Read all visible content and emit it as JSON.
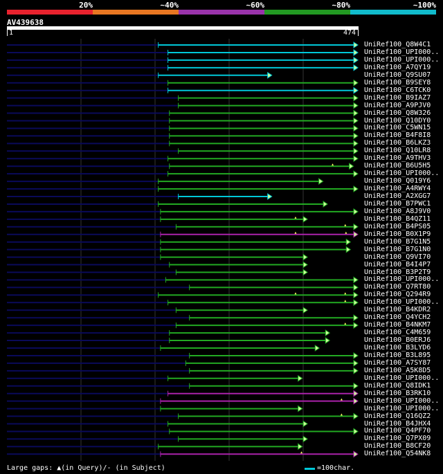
{
  "legend": {
    "colors": [
      "#e8222e",
      "#e87722",
      "#9933aa",
      "#229922",
      "#11bbcc"
    ],
    "labels": [
      "20%",
      "~40%",
      "~60%",
      "~80%",
      "~100%"
    ]
  },
  "query": {
    "name": "AV439638",
    "start": "1",
    "end": "474",
    "length": 474
  },
  "hits": [
    {
      "name": "UniRef100_Q8W4C1",
      "start": 205,
      "end": 474,
      "color": "cyan",
      "gaps": []
    },
    {
      "name": "UniRef100_UPI000..",
      "start": 218,
      "end": 474,
      "color": "cyan",
      "gaps": []
    },
    {
      "name": "UniRef100_UPI000..",
      "start": 218,
      "end": 474,
      "color": "cyan",
      "gaps": []
    },
    {
      "name": "UniRef100_A7QY19",
      "start": 218,
      "end": 474,
      "color": "cyan",
      "gaps": []
    },
    {
      "name": "UniRef100_Q9SU07",
      "start": 205,
      "end": 358,
      "color": "cyan",
      "gaps": []
    },
    {
      "name": "UniRef100_B9SEY8",
      "start": 218,
      "end": 474,
      "color": "green",
      "gaps": []
    },
    {
      "name": "UniRef100_C6TCK0",
      "start": 218,
      "end": 474,
      "color": "cyan",
      "gaps": []
    },
    {
      "name": "UniRef100_B9IAZ7",
      "start": 232,
      "end": 474,
      "color": "green",
      "gaps": []
    },
    {
      "name": "UniRef100_A9PJV0",
      "start": 232,
      "end": 474,
      "color": "green",
      "gaps": []
    },
    {
      "name": "UniRef100_Q8W326",
      "start": 220,
      "end": 474,
      "color": "green",
      "gaps": []
    },
    {
      "name": "UniRef100_Q10DY0",
      "start": 220,
      "end": 474,
      "color": "green",
      "gaps": []
    },
    {
      "name": "UniRef100_C5WN15",
      "start": 220,
      "end": 474,
      "color": "green",
      "gaps": []
    },
    {
      "name": "UniRef100_B4F8I8",
      "start": 220,
      "end": 474,
      "color": "green",
      "gaps": []
    },
    {
      "name": "UniRef100_B6LKZ3",
      "start": 220,
      "end": 474,
      "color": "green",
      "gaps": []
    },
    {
      "name": "UniRef100_Q10LR8",
      "start": 232,
      "end": 474,
      "color": "green",
      "gaps": []
    },
    {
      "name": "UniRef100_A9THV3",
      "start": 218,
      "end": 474,
      "color": "green",
      "gaps": []
    },
    {
      "name": "UniRef100_B6U5H5",
      "start": 220,
      "end": 468,
      "color": "green",
      "gaps": [
        440
      ]
    },
    {
      "name": "UniRef100_UPI000..",
      "start": 218,
      "end": 474,
      "color": "green",
      "gaps": []
    },
    {
      "name": "UniRef100_Q019Y6",
      "start": 205,
      "end": 427,
      "color": "green",
      "gaps": []
    },
    {
      "name": "UniRef100_A4RWY4",
      "start": 205,
      "end": 474,
      "color": "green",
      "gaps": []
    },
    {
      "name": "UniRef100_A2XGG7",
      "start": 232,
      "end": 358,
      "color": "cyan",
      "gaps": []
    },
    {
      "name": "UniRef100_B7PWC1",
      "start": 205,
      "end": 433,
      "color": "green",
      "gaps": []
    },
    {
      "name": "UniRef100_A8J9V0",
      "start": 208,
      "end": 474,
      "color": "green",
      "gaps": []
    },
    {
      "name": "UniRef100_B4QZ11",
      "start": 208,
      "end": 406,
      "color": "green",
      "gaps": [
        390
      ]
    },
    {
      "name": "UniRef100_B4PS05",
      "start": 229,
      "end": 474,
      "color": "green",
      "gaps": [
        457
      ]
    },
    {
      "name": "UniRef100_B0X1P9",
      "start": 208,
      "end": 474,
      "color": "magenta",
      "gaps": [
        390,
        458
      ]
    },
    {
      "name": "UniRef100_B7G1N5",
      "start": 208,
      "end": 464,
      "color": "green",
      "gaps": []
    },
    {
      "name": "UniRef100_B7G1N0",
      "start": 208,
      "end": 464,
      "color": "green",
      "gaps": []
    },
    {
      "name": "UniRef100_Q9VI70",
      "start": 208,
      "end": 406,
      "color": "green",
      "gaps": []
    },
    {
      "name": "UniRef100_B4I4P7",
      "start": 220,
      "end": 406,
      "color": "green",
      "gaps": []
    },
    {
      "name": "UniRef100_B3P2T9",
      "start": 229,
      "end": 406,
      "color": "green",
      "gaps": []
    },
    {
      "name": "UniRef100_UPI000..",
      "start": 215,
      "end": 474,
      "color": "green",
      "gaps": []
    },
    {
      "name": "UniRef100_Q7RT80",
      "start": 247,
      "end": 474,
      "color": "green",
      "gaps": []
    },
    {
      "name": "UniRef100_Q294R9",
      "start": 205,
      "end": 474,
      "color": "green",
      "gaps": [
        390,
        457
      ]
    },
    {
      "name": "UniRef100_UPI000..",
      "start": 218,
      "end": 474,
      "color": "green",
      "gaps": [
        457
      ]
    },
    {
      "name": "UniRef100_B4KDR2",
      "start": 229,
      "end": 406,
      "color": "green",
      "gaps": []
    },
    {
      "name": "UniRef100_Q4YCH2",
      "start": 247,
      "end": 474,
      "color": "green",
      "gaps": []
    },
    {
      "name": "UniRef100_B4NKM7",
      "start": 229,
      "end": 474,
      "color": "green",
      "gaps": [
        457
      ]
    },
    {
      "name": "UniRef100_C4M659",
      "start": 220,
      "end": 436,
      "color": "green",
      "gaps": []
    },
    {
      "name": "UniRef100_B0ERJ6",
      "start": 220,
      "end": 436,
      "color": "green",
      "gaps": []
    },
    {
      "name": "UniRef100_B3LYD6",
      "start": 208,
      "end": 422,
      "color": "green",
      "gaps": []
    },
    {
      "name": "UniRef100_B3L895",
      "start": 247,
      "end": 474,
      "color": "green",
      "gaps": []
    },
    {
      "name": "UniRef100_A7SY87",
      "start": 242,
      "end": 474,
      "color": "green",
      "gaps": []
    },
    {
      "name": "UniRef100_A5K8D5",
      "start": 247,
      "end": 474,
      "color": "green",
      "gaps": []
    },
    {
      "name": "UniRef100_UPI000..",
      "start": 218,
      "end": 399,
      "color": "green",
      "gaps": []
    },
    {
      "name": "UniRef100_Q8IDK1",
      "start": 247,
      "end": 474,
      "color": "green",
      "gaps": []
    },
    {
      "name": "UniRef100_B3RK10",
      "start": 218,
      "end": 474,
      "color": "magenta",
      "gaps": []
    },
    {
      "name": "UniRef100_UPI000..",
      "start": 208,
      "end": 474,
      "color": "magenta",
      "gaps": [
        452
      ]
    },
    {
      "name": "UniRef100_UPI000..",
      "start": 208,
      "end": 399,
      "color": "green",
      "gaps": []
    },
    {
      "name": "UniRef100_Q16QZ2",
      "start": 232,
      "end": 474,
      "color": "green",
      "gaps": [
        452
      ]
    },
    {
      "name": "UniRef100_B4JHX4",
      "start": 218,
      "end": 406,
      "color": "green",
      "gaps": []
    },
    {
      "name": "UniRef100_Q4PF70",
      "start": 220,
      "end": 474,
      "color": "green",
      "gaps": []
    },
    {
      "name": "UniRef100_Q7PX09",
      "start": 232,
      "end": 406,
      "color": "green",
      "gaps": []
    },
    {
      "name": "UniRef100_B8CF20",
      "start": 205,
      "end": 399,
      "color": "green",
      "gaps": []
    },
    {
      "name": "UniRef100_Q54NK8",
      "start": 208,
      "end": 474,
      "color": "magenta",
      "gaps": [
        398
      ]
    }
  ],
  "hit_colors": {
    "cyan": "#00c8d8",
    "green": "#22aa22",
    "magenta": "#aa22aa",
    "arrow_fill": "#ccff99",
    "query_track": "#0a0a5a",
    "grid": "#333333"
  },
  "footer": {
    "gaps_text": "Large gaps: ▲(in Query)/- (in Subject)",
    "scale_text": "=100char."
  }
}
